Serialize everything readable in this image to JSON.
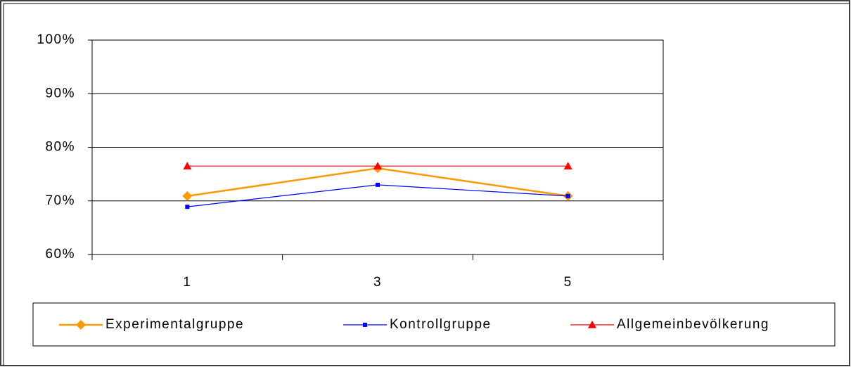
{
  "chart_data": {
    "type": "line",
    "categories": [
      "1",
      "3",
      "5"
    ],
    "series": [
      {
        "name": "Experimentalgruppe",
        "color": "#ff9900",
        "marker": "diamond",
        "values": [
          70.9,
          76.1,
          70.9
        ]
      },
      {
        "name": "Kontrollgruppe",
        "color": "#0000ff",
        "marker": "square",
        "values": [
          68.9,
          73,
          70.9
        ]
      },
      {
        "name": "Allgemeinbevölkerung",
        "color": "#ff0000",
        "marker": "triangle",
        "values": [
          76.5,
          76.5,
          76.5
        ]
      }
    ],
    "ylim": [
      60,
      100
    ],
    "yticks": [
      {
        "value": 60,
        "label": "60%"
      },
      {
        "value": 70,
        "label": "70%"
      },
      {
        "value": 80,
        "label": "80%"
      },
      {
        "value": 90,
        "label": "90%"
      },
      {
        "value": 100,
        "label": "100%"
      }
    ],
    "grid": true,
    "legend": "bottom"
  }
}
